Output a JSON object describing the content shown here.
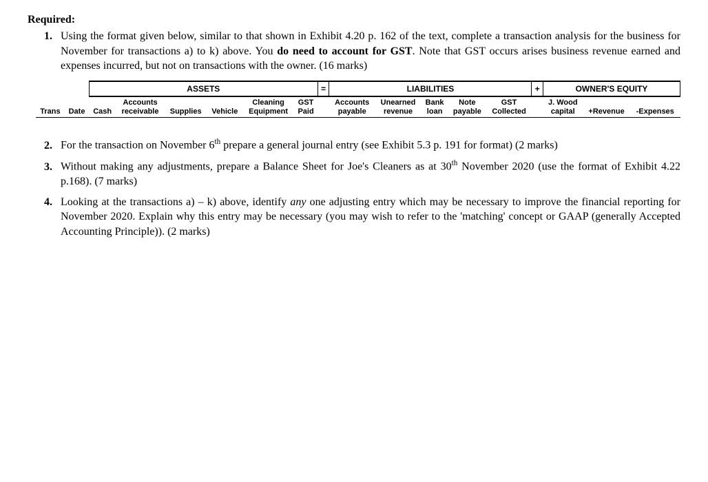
{
  "required_label": "Required:",
  "item1": {
    "text_part1": "Using the format given below, similar to that shown in Exhibit 4.20 p. 162 of the text, complete a transaction analysis for the business for November for transactions a) to k) above. You ",
    "bold": "do need to account for GST",
    "text_part2": ". Note that GST occurs arises business revenue earned and expenses incurred, but not on transactions with the owner. (16 marks)"
  },
  "table": {
    "sections": {
      "assets": "ASSETS",
      "equals": "=",
      "liabilities": "LIABILITIES",
      "plus": "+",
      "owners_equity": "OWNER'S EQUITY"
    },
    "columns": {
      "trans": "Trans",
      "date": "Date",
      "cash": "Cash",
      "accounts_receivable_l1": "Accounts",
      "accounts_receivable_l2": "receivable",
      "supplies": "Supplies",
      "vehicle": "Vehicle",
      "cleaning_equip_l1": "Cleaning",
      "cleaning_equip_l2": "Equipment",
      "gst_paid_l1": "GST",
      "gst_paid_l2": "Paid",
      "accounts_payable_l1": "Accounts",
      "accounts_payable_l2": "payable",
      "unearned_rev_l1": "Unearned",
      "unearned_rev_l2": "revenue",
      "bank_loan_l1": "Bank",
      "bank_loan_l2": "loan",
      "note_payable_l1": "Note",
      "note_payable_l2": "payable",
      "gst_collected_l1": "GST",
      "gst_collected_l2": "Collected",
      "jwood_capital_l1": "J. Wood",
      "jwood_capital_l2": "capital",
      "plus_revenue": "+Revenue",
      "minus_expenses": "-Expenses"
    }
  },
  "item2": {
    "text_part1": "For the transaction on November 6",
    "sup": "th",
    "text_part2": " prepare a general journal entry (see Exhibit 5.3 p. 191 for format) (2 marks)"
  },
  "item3": {
    "text_part1": "Without making any adjustments, prepare a Balance Sheet for Joe's Cleaners as at 30",
    "sup": "th",
    "text_part2": " November 2020 (use the format of Exhibit 4.22 p.168). (7 marks)"
  },
  "item4": {
    "text_part1": "Looking at the transactions a) – k) above, identify ",
    "italic": "any",
    "text_part2": " one adjusting entry which may be necessary to improve the financial reporting for November 2020.  Explain why this entry may be necessary (you may wish to refer to the 'matching' concept or GAAP (generally Accepted Accounting Principle)). (2 marks)"
  }
}
